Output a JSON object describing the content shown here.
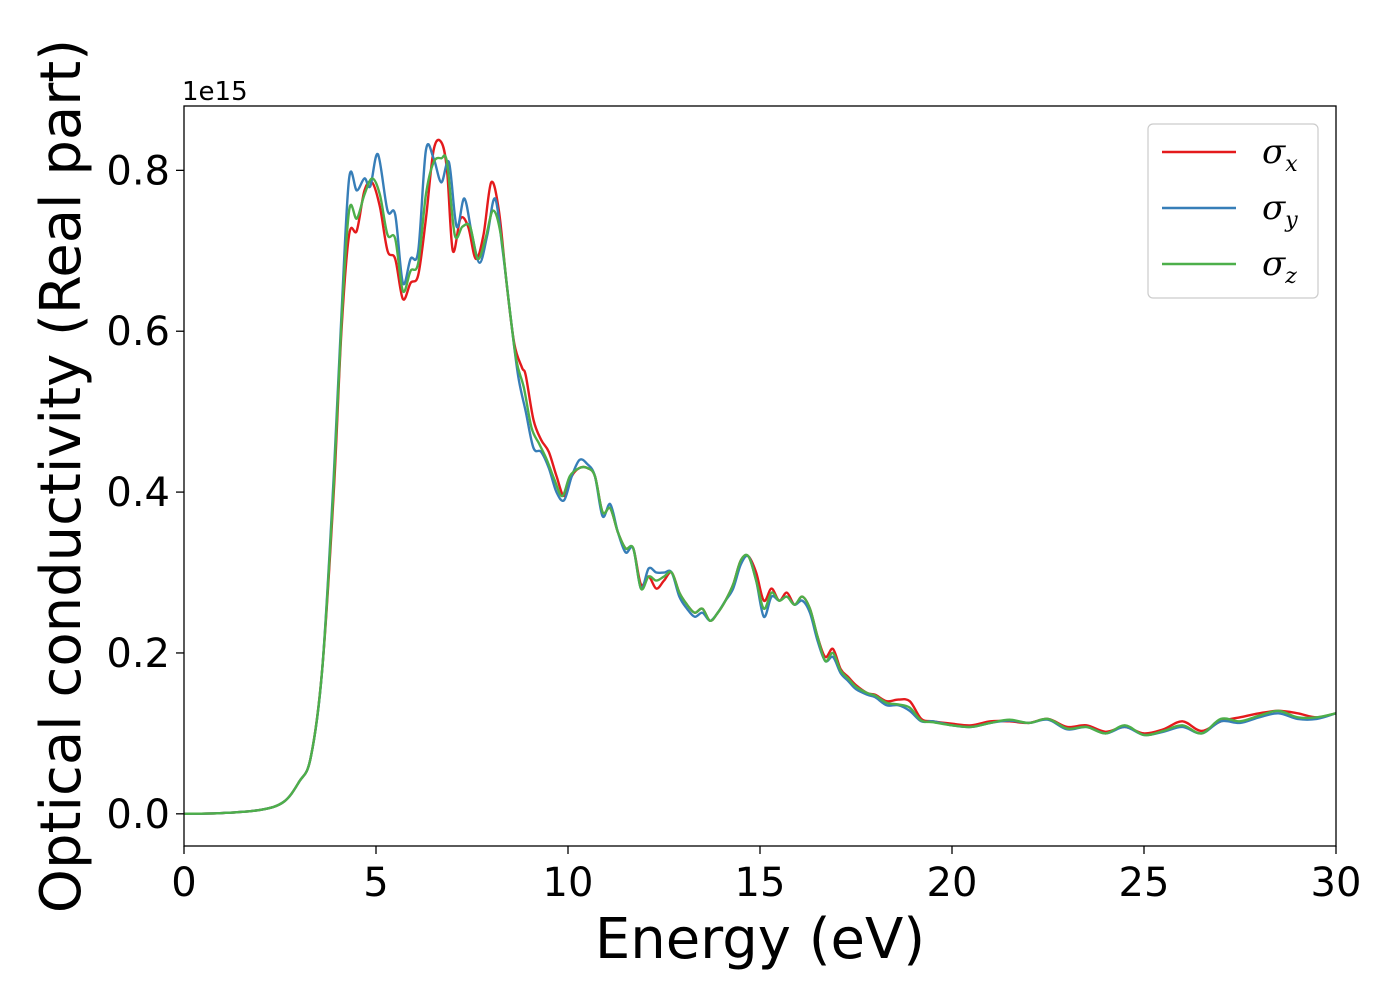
{
  "chart_data": {
    "type": "line",
    "xlabel": "Energy (eV)",
    "ylabel": "Optical conductivity (Real part)",
    "y_offset_text": "1e15",
    "xlim": [
      0,
      30
    ],
    "ylim": [
      -0.04,
      0.88
    ],
    "y_scale_factor": 1000000000000000.0,
    "x_ticks": [
      0,
      5,
      10,
      15,
      20,
      25,
      30
    ],
    "x_tick_labels": [
      "0",
      "5",
      "10",
      "15",
      "20",
      "25",
      "30"
    ],
    "y_ticks": [
      0.0,
      0.2,
      0.4,
      0.6,
      0.8
    ],
    "y_tick_labels": [
      "0.0",
      "0.2",
      "0.4",
      "0.6",
      "0.8"
    ],
    "grid": false,
    "legend_position": "top-right",
    "series": [
      {
        "name": "σx",
        "symbol": "σ",
        "subscript": "x",
        "color": "#e41a1c",
        "points": [
          [
            0,
            0
          ],
          [
            1,
            0.001
          ],
          [
            2,
            0.005
          ],
          [
            2.6,
            0.015
          ],
          [
            3,
            0.04
          ],
          [
            3.3,
            0.07
          ],
          [
            3.6,
            0.18
          ],
          [
            3.9,
            0.4
          ],
          [
            4.1,
            0.6
          ],
          [
            4.3,
            0.72
          ],
          [
            4.5,
            0.725
          ],
          [
            4.7,
            0.775
          ],
          [
            4.9,
            0.785
          ],
          [
            5.1,
            0.755
          ],
          [
            5.3,
            0.7
          ],
          [
            5.5,
            0.69
          ],
          [
            5.7,
            0.64
          ],
          [
            5.9,
            0.66
          ],
          [
            6.1,
            0.67
          ],
          [
            6.3,
            0.74
          ],
          [
            6.5,
            0.825
          ],
          [
            6.7,
            0.835
          ],
          [
            6.85,
            0.8
          ],
          [
            7.0,
            0.7
          ],
          [
            7.2,
            0.74
          ],
          [
            7.4,
            0.73
          ],
          [
            7.6,
            0.69
          ],
          [
            7.8,
            0.72
          ],
          [
            8.0,
            0.785
          ],
          [
            8.2,
            0.75
          ],
          [
            8.4,
            0.66
          ],
          [
            8.6,
            0.585
          ],
          [
            8.8,
            0.555
          ],
          [
            8.9,
            0.545
          ],
          [
            9.1,
            0.49
          ],
          [
            9.3,
            0.465
          ],
          [
            9.5,
            0.45
          ],
          [
            9.7,
            0.42
          ],
          [
            9.9,
            0.395
          ],
          [
            10.1,
            0.42
          ],
          [
            10.3,
            0.43
          ],
          [
            10.5,
            0.43
          ],
          [
            10.7,
            0.42
          ],
          [
            10.9,
            0.375
          ],
          [
            11.1,
            0.38
          ],
          [
            11.3,
            0.35
          ],
          [
            11.5,
            0.33
          ],
          [
            11.7,
            0.33
          ],
          [
            11.9,
            0.285
          ],
          [
            12.1,
            0.295
          ],
          [
            12.3,
            0.28
          ],
          [
            12.5,
            0.29
          ],
          [
            12.7,
            0.3
          ],
          [
            12.9,
            0.275
          ],
          [
            13.1,
            0.26
          ],
          [
            13.3,
            0.25
          ],
          [
            13.5,
            0.255
          ],
          [
            13.7,
            0.24
          ],
          [
            13.9,
            0.25
          ],
          [
            14.1,
            0.265
          ],
          [
            14.3,
            0.285
          ],
          [
            14.5,
            0.315
          ],
          [
            14.7,
            0.32
          ],
          [
            14.9,
            0.3
          ],
          [
            15.1,
            0.265
          ],
          [
            15.3,
            0.28
          ],
          [
            15.5,
            0.265
          ],
          [
            15.7,
            0.275
          ],
          [
            15.9,
            0.26
          ],
          [
            16.1,
            0.27
          ],
          [
            16.3,
            0.255
          ],
          [
            16.5,
            0.22
          ],
          [
            16.7,
            0.195
          ],
          [
            16.9,
            0.205
          ],
          [
            17.1,
            0.18
          ],
          [
            17.3,
            0.17
          ],
          [
            17.5,
            0.16
          ],
          [
            17.8,
            0.15
          ],
          [
            18.0,
            0.148
          ],
          [
            18.3,
            0.14
          ],
          [
            18.6,
            0.142
          ],
          [
            18.9,
            0.14
          ],
          [
            19.2,
            0.118
          ],
          [
            19.5,
            0.115
          ],
          [
            20,
            0.112
          ],
          [
            20.5,
            0.11
          ],
          [
            21,
            0.115
          ],
          [
            21.5,
            0.115
          ],
          [
            22,
            0.113
          ],
          [
            22.5,
            0.118
          ],
          [
            23,
            0.108
          ],
          [
            23.5,
            0.11
          ],
          [
            24,
            0.102
          ],
          [
            24.5,
            0.108
          ],
          [
            25,
            0.1
          ],
          [
            25.5,
            0.105
          ],
          [
            26,
            0.115
          ],
          [
            26.5,
            0.103
          ],
          [
            27,
            0.115
          ],
          [
            27.5,
            0.12
          ],
          [
            28,
            0.125
          ],
          [
            28.5,
            0.128
          ],
          [
            29,
            0.125
          ],
          [
            29.5,
            0.12
          ],
          [
            30,
            0.125
          ]
        ]
      },
      {
        "name": "σy",
        "symbol": "σ",
        "subscript": "y",
        "color": "#377eb8",
        "points": [
          [
            0,
            0
          ],
          [
            1,
            0.001
          ],
          [
            2,
            0.005
          ],
          [
            2.6,
            0.015
          ],
          [
            3,
            0.04
          ],
          [
            3.3,
            0.07
          ],
          [
            3.6,
            0.18
          ],
          [
            3.9,
            0.42
          ],
          [
            4.1,
            0.62
          ],
          [
            4.3,
            0.79
          ],
          [
            4.5,
            0.775
          ],
          [
            4.7,
            0.79
          ],
          [
            4.85,
            0.78
          ],
          [
            5.05,
            0.82
          ],
          [
            5.3,
            0.75
          ],
          [
            5.5,
            0.745
          ],
          [
            5.7,
            0.66
          ],
          [
            5.9,
            0.69
          ],
          [
            6.1,
            0.7
          ],
          [
            6.3,
            0.825
          ],
          [
            6.5,
            0.815
          ],
          [
            6.7,
            0.785
          ],
          [
            6.9,
            0.81
          ],
          [
            7.1,
            0.73
          ],
          [
            7.3,
            0.765
          ],
          [
            7.5,
            0.72
          ],
          [
            7.7,
            0.685
          ],
          [
            7.9,
            0.72
          ],
          [
            8.1,
            0.765
          ],
          [
            8.3,
            0.7
          ],
          [
            8.5,
            0.62
          ],
          [
            8.7,
            0.545
          ],
          [
            8.9,
            0.5
          ],
          [
            9.1,
            0.455
          ],
          [
            9.3,
            0.45
          ],
          [
            9.5,
            0.43
          ],
          [
            9.7,
            0.4
          ],
          [
            9.9,
            0.39
          ],
          [
            10.1,
            0.42
          ],
          [
            10.3,
            0.44
          ],
          [
            10.5,
            0.435
          ],
          [
            10.7,
            0.42
          ],
          [
            10.9,
            0.37
          ],
          [
            11.1,
            0.385
          ],
          [
            11.3,
            0.35
          ],
          [
            11.5,
            0.325
          ],
          [
            11.7,
            0.33
          ],
          [
            11.9,
            0.28
          ],
          [
            12.1,
            0.305
          ],
          [
            12.3,
            0.3
          ],
          [
            12.5,
            0.3
          ],
          [
            12.7,
            0.3
          ],
          [
            12.9,
            0.27
          ],
          [
            13.1,
            0.255
          ],
          [
            13.3,
            0.245
          ],
          [
            13.5,
            0.25
          ],
          [
            13.7,
            0.24
          ],
          [
            13.9,
            0.25
          ],
          [
            14.1,
            0.265
          ],
          [
            14.3,
            0.28
          ],
          [
            14.5,
            0.31
          ],
          [
            14.7,
            0.32
          ],
          [
            14.9,
            0.29
          ],
          [
            15.1,
            0.245
          ],
          [
            15.3,
            0.27
          ],
          [
            15.5,
            0.265
          ],
          [
            15.7,
            0.27
          ],
          [
            15.9,
            0.26
          ],
          [
            16.1,
            0.265
          ],
          [
            16.3,
            0.25
          ],
          [
            16.5,
            0.215
          ],
          [
            16.7,
            0.19
          ],
          [
            16.9,
            0.195
          ],
          [
            17.1,
            0.175
          ],
          [
            17.3,
            0.165
          ],
          [
            17.5,
            0.155
          ],
          [
            17.8,
            0.148
          ],
          [
            18.0,
            0.145
          ],
          [
            18.3,
            0.135
          ],
          [
            18.6,
            0.135
          ],
          [
            18.9,
            0.128
          ],
          [
            19.2,
            0.115
          ],
          [
            19.5,
            0.115
          ],
          [
            20,
            0.11
          ],
          [
            20.5,
            0.108
          ],
          [
            21,
            0.113
          ],
          [
            21.5,
            0.116
          ],
          [
            22,
            0.113
          ],
          [
            22.5,
            0.117
          ],
          [
            23,
            0.105
          ],
          [
            23.5,
            0.108
          ],
          [
            24,
            0.1
          ],
          [
            24.5,
            0.108
          ],
          [
            25,
            0.098
          ],
          [
            25.5,
            0.102
          ],
          [
            26,
            0.108
          ],
          [
            26.5,
            0.1
          ],
          [
            27,
            0.115
          ],
          [
            27.5,
            0.113
          ],
          [
            28,
            0.12
          ],
          [
            28.5,
            0.125
          ],
          [
            29,
            0.118
          ],
          [
            29.5,
            0.118
          ],
          [
            30,
            0.125
          ]
        ]
      },
      {
        "name": "σz",
        "symbol": "σ",
        "subscript": "z",
        "color": "#4daf4a",
        "points": [
          [
            0,
            0
          ],
          [
            1,
            0.001
          ],
          [
            2,
            0.005
          ],
          [
            2.6,
            0.015
          ],
          [
            3,
            0.04
          ],
          [
            3.3,
            0.07
          ],
          [
            3.6,
            0.18
          ],
          [
            3.9,
            0.41
          ],
          [
            4.1,
            0.61
          ],
          [
            4.3,
            0.75
          ],
          [
            4.5,
            0.74
          ],
          [
            4.7,
            0.77
          ],
          [
            4.9,
            0.79
          ],
          [
            5.1,
            0.77
          ],
          [
            5.3,
            0.72
          ],
          [
            5.5,
            0.715
          ],
          [
            5.7,
            0.65
          ],
          [
            5.9,
            0.675
          ],
          [
            6.1,
            0.685
          ],
          [
            6.3,
            0.77
          ],
          [
            6.5,
            0.81
          ],
          [
            6.7,
            0.815
          ],
          [
            6.85,
            0.81
          ],
          [
            7.05,
            0.72
          ],
          [
            7.25,
            0.73
          ],
          [
            7.45,
            0.73
          ],
          [
            7.65,
            0.69
          ],
          [
            7.85,
            0.715
          ],
          [
            8.05,
            0.75
          ],
          [
            8.25,
            0.72
          ],
          [
            8.45,
            0.64
          ],
          [
            8.65,
            0.565
          ],
          [
            8.85,
            0.53
          ],
          [
            9.05,
            0.48
          ],
          [
            9.25,
            0.46
          ],
          [
            9.45,
            0.44
          ],
          [
            9.65,
            0.415
          ],
          [
            9.85,
            0.395
          ],
          [
            10.05,
            0.42
          ],
          [
            10.3,
            0.43
          ],
          [
            10.5,
            0.43
          ],
          [
            10.7,
            0.42
          ],
          [
            10.9,
            0.375
          ],
          [
            11.1,
            0.38
          ],
          [
            11.3,
            0.35
          ],
          [
            11.5,
            0.33
          ],
          [
            11.7,
            0.33
          ],
          [
            11.9,
            0.28
          ],
          [
            12.1,
            0.295
          ],
          [
            12.3,
            0.29
          ],
          [
            12.5,
            0.295
          ],
          [
            12.7,
            0.3
          ],
          [
            12.9,
            0.275
          ],
          [
            13.1,
            0.26
          ],
          [
            13.3,
            0.25
          ],
          [
            13.5,
            0.255
          ],
          [
            13.7,
            0.24
          ],
          [
            13.9,
            0.25
          ],
          [
            14.1,
            0.265
          ],
          [
            14.3,
            0.285
          ],
          [
            14.5,
            0.315
          ],
          [
            14.7,
            0.32
          ],
          [
            14.9,
            0.29
          ],
          [
            15.1,
            0.255
          ],
          [
            15.3,
            0.275
          ],
          [
            15.5,
            0.265
          ],
          [
            15.7,
            0.27
          ],
          [
            15.9,
            0.26
          ],
          [
            16.1,
            0.27
          ],
          [
            16.3,
            0.255
          ],
          [
            16.5,
            0.22
          ],
          [
            16.7,
            0.19
          ],
          [
            16.9,
            0.2
          ],
          [
            17.1,
            0.178
          ],
          [
            17.3,
            0.168
          ],
          [
            17.5,
            0.158
          ],
          [
            17.8,
            0.15
          ],
          [
            18.0,
            0.147
          ],
          [
            18.3,
            0.138
          ],
          [
            18.6,
            0.136
          ],
          [
            18.9,
            0.132
          ],
          [
            19.2,
            0.116
          ],
          [
            19.5,
            0.114
          ],
          [
            20,
            0.11
          ],
          [
            20.5,
            0.108
          ],
          [
            21,
            0.113
          ],
          [
            21.5,
            0.117
          ],
          [
            22,
            0.113
          ],
          [
            22.5,
            0.118
          ],
          [
            23,
            0.106
          ],
          [
            23.5,
            0.108
          ],
          [
            24,
            0.1
          ],
          [
            24.5,
            0.11
          ],
          [
            25,
            0.098
          ],
          [
            25.5,
            0.103
          ],
          [
            26,
            0.11
          ],
          [
            26.5,
            0.1
          ],
          [
            27,
            0.118
          ],
          [
            27.5,
            0.115
          ],
          [
            28,
            0.122
          ],
          [
            28.5,
            0.128
          ],
          [
            29,
            0.12
          ],
          [
            29.5,
            0.12
          ],
          [
            30,
            0.125
          ]
        ]
      }
    ]
  }
}
